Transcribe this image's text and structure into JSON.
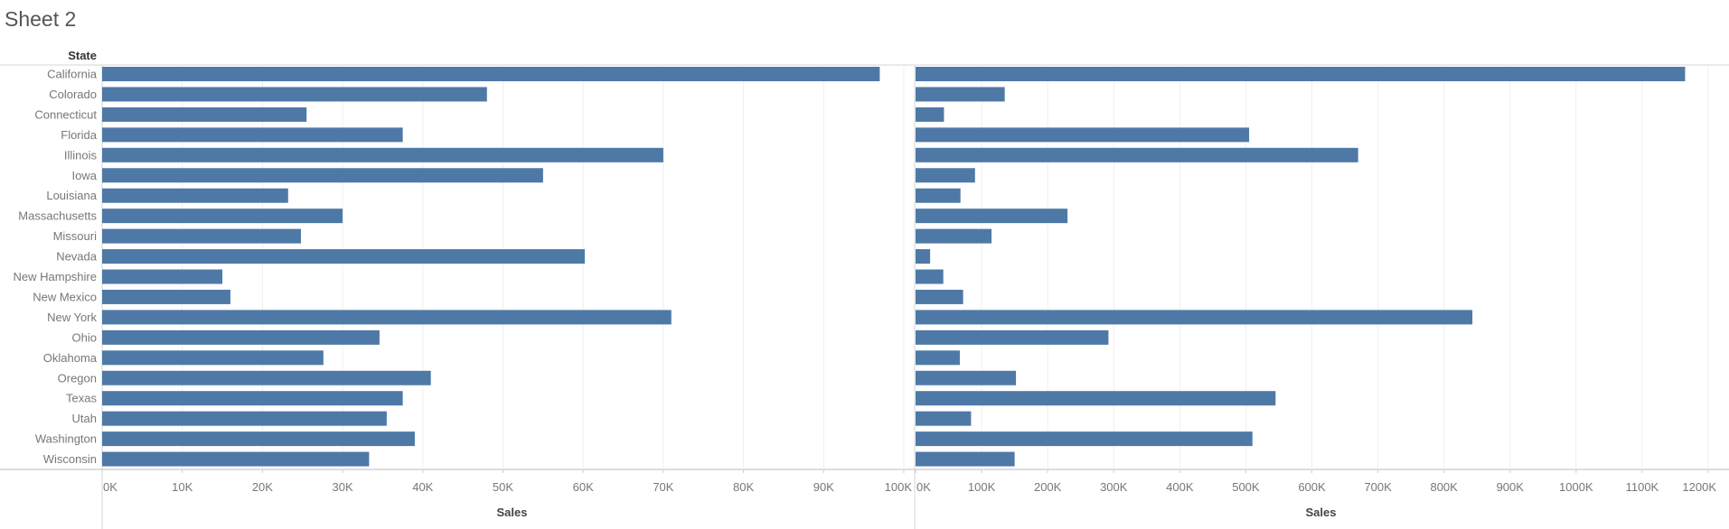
{
  "sheet": {
    "title": "Sheet 2"
  },
  "chart_data": {
    "type": "bar",
    "orientation": "horizontal",
    "row_header": "State",
    "categories": [
      "California",
      "Colorado",
      "Connecticut",
      "Florida",
      "Illinois",
      "Iowa",
      "Louisiana",
      "Massachusetts",
      "Missouri",
      "Nevada",
      "New Hampshire",
      "New Mexico",
      "New York",
      "Ohio",
      "Oklahoma",
      "Oregon",
      "Texas",
      "Utah",
      "Washington",
      "Wisconsin"
    ],
    "bar_color": "#4e79a7",
    "grid": true,
    "panels": [
      {
        "xlabel": "Sales",
        "xlim": [
          0,
          100000
        ],
        "ticks": [
          0,
          10000,
          20000,
          30000,
          40000,
          50000,
          60000,
          70000,
          80000,
          90000,
          100000
        ],
        "tick_labels": [
          "0K",
          "10K",
          "20K",
          "30K",
          "40K",
          "50K",
          "60K",
          "70K",
          "80K",
          "90K",
          "100K"
        ],
        "values": [
          97000,
          48000,
          25500,
          37500,
          70000,
          55000,
          23200,
          30000,
          24800,
          60200,
          15000,
          16000,
          71000,
          34600,
          27600,
          41000,
          37500,
          35500,
          39000,
          33300
        ]
      },
      {
        "xlabel": "Sales",
        "xlim": [
          0,
          1200000
        ],
        "ticks": [
          0,
          100000,
          200000,
          300000,
          400000,
          500000,
          600000,
          700000,
          800000,
          900000,
          1000000,
          1100000,
          1200000
        ],
        "tick_labels": [
          "0K",
          "100K",
          "200K",
          "300K",
          "400K",
          "500K",
          "600K",
          "700K",
          "800K",
          "900K",
          "1000K",
          "1100K",
          "1200K"
        ],
        "values": [
          1165000,
          135000,
          43000,
          505000,
          670000,
          90000,
          68000,
          230000,
          115000,
          22000,
          42000,
          72000,
          843000,
          292000,
          67000,
          152000,
          545000,
          84000,
          510000,
          150000
        ]
      }
    ]
  }
}
